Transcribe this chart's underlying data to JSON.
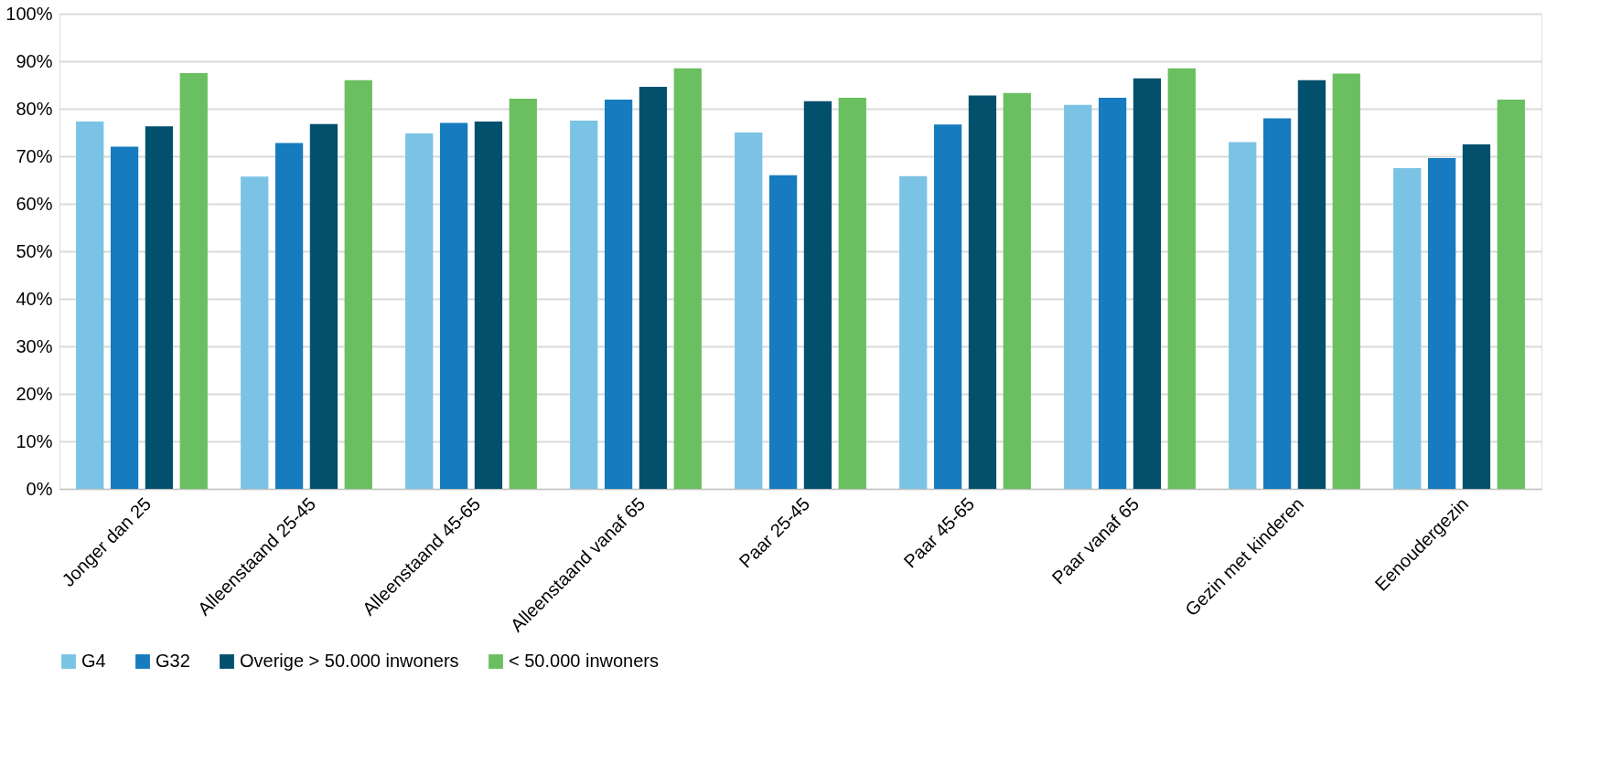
{
  "chart_data": {
    "type": "bar",
    "categories": [
      "Jonger dan 25",
      "Alleenstaand 25-45",
      "Alleenstaand 45-65",
      "Alleenstaand vanaf 65",
      "Paar 25-45",
      "Paar 45-65",
      "Paar vanaf 65",
      "Gezin met kinderen",
      "Eenoudergezin"
    ],
    "series": [
      {
        "name": "G4",
        "color": "#7bc3e4",
        "values": [
          77.3,
          65.7,
          74.8,
          77.5,
          75,
          65.8,
          80.8,
          73,
          67.5
        ]
      },
      {
        "name": "G32",
        "color": "#177bbf",
        "values": [
          72,
          72.8,
          77,
          81.9,
          66,
          76.7,
          82.3,
          78,
          69.6
        ]
      },
      {
        "name": "Overige > 50.000 inwoners",
        "color": "#03506d",
        "values": [
          76.3,
          76.8,
          77.3,
          84.6,
          81.6,
          82.8,
          86.4,
          86,
          72.5
        ]
      },
      {
        "name": "< 50.000 inwoners",
        "color": "#6abf61",
        "values": [
          87.5,
          86,
          82.1,
          88.5,
          82.3,
          83.3,
          88.5,
          87.4,
          81.9
        ]
      }
    ],
    "ylim": [
      0,
      100
    ],
    "yticks": [
      {
        "value": 0,
        "label": "0%"
      },
      {
        "value": 10,
        "label": "10%"
      },
      {
        "value": 20,
        "label": "20%"
      },
      {
        "value": 30,
        "label": "30%"
      },
      {
        "value": 40,
        "label": "40%"
      },
      {
        "value": 50,
        "label": "50%"
      },
      {
        "value": 60,
        "label": "60%"
      },
      {
        "value": 70,
        "label": "70%"
      },
      {
        "value": 80,
        "label": "80%"
      },
      {
        "value": 90,
        "label": "90%"
      },
      {
        "value": 100,
        "label": "100%"
      }
    ],
    "grid": "y",
    "legend": "bottom"
  }
}
